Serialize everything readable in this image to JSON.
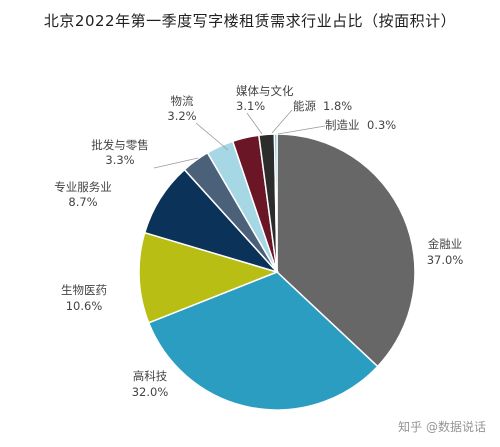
{
  "chart_data": {
    "type": "pie",
    "title": "北京2022年第一季度写字楼租赁需求行业占比（按面积计）",
    "unit": "%",
    "slices": [
      {
        "label": "金融业",
        "value": 37.0,
        "value_label": "37.0%",
        "color": "#666766"
      },
      {
        "label": "高科技",
        "value": 32.0,
        "value_label": "32.0%",
        "color": "#2b9dc0"
      },
      {
        "label": "生物医药",
        "value": 10.6,
        "value_label": "10.6%",
        "color": "#b8be14"
      },
      {
        "label": "专业服务业",
        "value": 8.7,
        "value_label": "8.7%",
        "color": "#0b3258"
      },
      {
        "label": "批发与零售",
        "value": 3.3,
        "value_label": "3.3%",
        "color": "#4b6079"
      },
      {
        "label": "物流",
        "value": 3.2,
        "value_label": "3.2%",
        "color": "#a5d7e4"
      },
      {
        "label": "媒体与文化",
        "value": 3.1,
        "value_label": "3.1%",
        "color": "#6b1626"
      },
      {
        "label": "能源",
        "value": 1.8,
        "value_label": "1.8%",
        "color": "#2c2c2c"
      },
      {
        "label": "制造业",
        "value": 0.3,
        "value_label": "0.3%",
        "color": "#5ab4d6"
      }
    ]
  },
  "watermark": "知乎 @数据说话"
}
